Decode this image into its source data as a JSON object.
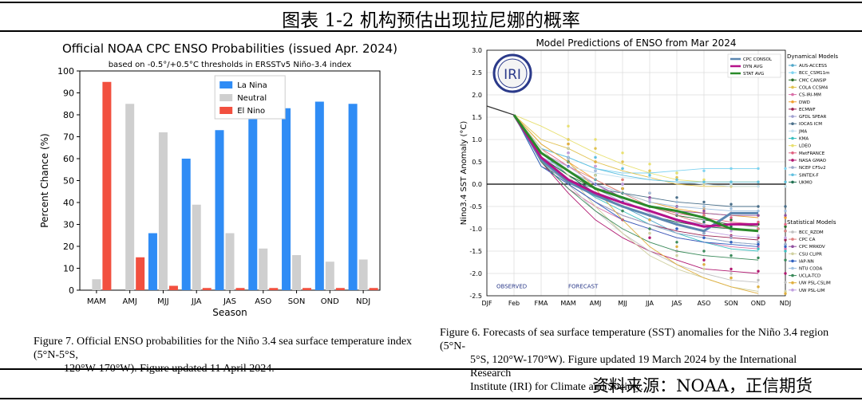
{
  "page": {
    "title": "图表 1-2 机构预估出现拉尼娜的概率",
    "source": "资料来源：NOAA，正信期货"
  },
  "left": {
    "caption_line1": "Figure 7. Official ENSO probabilities for the Niño 3.4 sea surface temperature index (5°N-5°S,",
    "caption_line2": "120°W-170°W). Figure updated 11 April 2024."
  },
  "right": {
    "caption_line1": "Figure 6. Forecasts of sea surface temperature (SST) anomalies for the Niño 3.4 region (5°N-",
    "caption_line2": "5°S, 120°W-170°W). Figure updated 19 March 2024 by the International Research",
    "caption_line3": "Institute (IRI) for Climate and Society.",
    "logo_text": "IRI"
  },
  "chart_data": [
    {
      "type": "bar",
      "title": "Official NOAA CPC ENSO Probabilities (issued Apr. 2024)",
      "subtitle": "based on -0.5°/+0.5°C thresholds in ERSSTv5 Niño-3.4 index",
      "xlabel": "Season",
      "ylabel": "Percent Chance (%)",
      "ylim": [
        0,
        100
      ],
      "yticks": [
        0,
        10,
        20,
        30,
        40,
        50,
        60,
        70,
        80,
        90,
        100
      ],
      "categories": [
        "MAM",
        "AMJ",
        "MJJ",
        "JJA",
        "JAS",
        "ASO",
        "SON",
        "OND",
        "NDJ"
      ],
      "legend_position": "top-center",
      "grid": false,
      "series": [
        {
          "name": "La Nina",
          "color": "#2f8cf5",
          "values": [
            0,
            0,
            26,
            60,
            73,
            80,
            83,
            86,
            85
          ]
        },
        {
          "name": "Neutral",
          "color": "#cfcfcf",
          "values": [
            5,
            85,
            72,
            39,
            26,
            19,
            16,
            13,
            14
          ]
        },
        {
          "name": "El Nino",
          "color": "#f2503f",
          "values": [
            95,
            15,
            2,
            1,
            1,
            1,
            1,
            1,
            1
          ]
        }
      ]
    },
    {
      "type": "line",
      "title": "Model Predictions of ENSO from Mar 2024",
      "ylabel": "Nino3.4 SST Anomaly (°C)",
      "ylim": [
        -2.5,
        3.0
      ],
      "yticks": [
        -2.5,
        -2.0,
        -1.5,
        -1.0,
        -0.5,
        0.0,
        0.5,
        1.0,
        1.5,
        2.0,
        2.5,
        3.0
      ],
      "x": [
        "DJF",
        "Feb",
        "FMA",
        "MAM",
        "AMJ",
        "MJJ",
        "JJA",
        "JAS",
        "ASO",
        "SON",
        "OND",
        "NDJ"
      ],
      "grid": true,
      "annotations": [
        "OBSERVED",
        "FORECAST"
      ],
      "observed": [
        1.75,
        1.55
      ],
      "averages": [
        {
          "name": "CPC CONSOL",
          "color": "#5b86b0",
          "values": [
            0.55,
            0.05,
            -0.25,
            -0.5,
            -0.7,
            -0.9,
            -1.05,
            -0.65,
            -0.65
          ]
        },
        {
          "name": "DYN AVG",
          "color": "#b5128a",
          "values": [
            0.6,
            0.1,
            -0.2,
            -0.42,
            -0.6,
            -0.8,
            -0.95,
            -0.9,
            -0.9
          ]
        },
        {
          "name": "STAT AVG",
          "color": "#2a8a2a",
          "values": [
            0.7,
            0.3,
            -0.1,
            -0.3,
            -0.5,
            -0.6,
            -0.75,
            -1.0,
            -1.05
          ]
        }
      ],
      "dynamical_legend_title": "Dynamical Models",
      "statistical_legend_title": "Statistical Models",
      "dynamical_models": [
        {
          "name": "AUS-ACCESS",
          "color": "#4da6c9",
          "values": [
            0.7,
            0.2,
            -0.2,
            -0.5,
            -0.8,
            -1.1,
            -1.2,
            -1.3,
            -1.35
          ]
        },
        {
          "name": "BCC_CSM11m",
          "color": "#7fd3f0",
          "values": [
            0.8,
            0.6,
            0.35,
            0.25,
            0.25,
            0.3,
            0.35,
            0.35,
            0.35
          ]
        },
        {
          "name": "CMC CANSIP",
          "color": "#2a6e2a",
          "values": [
            0.6,
            0.2,
            -0.1,
            -0.3,
            -0.5,
            -0.7,
            -0.8,
            -0.9,
            -0.95
          ]
        },
        {
          "name": "COLA CCSM4",
          "color": "#e0c250",
          "values": [
            1.0,
            0.8,
            0.5,
            0.3,
            0.15,
            0.0,
            -0.05,
            -0.05,
            -0.05
          ]
        },
        {
          "name": "CS-IRI-MM",
          "color": "#d970a8",
          "values": [
            0.5,
            -0.1,
            -0.5,
            -0.8,
            -1.0,
            -1.2,
            -1.3,
            -1.4,
            -1.45
          ]
        },
        {
          "name": "DWD",
          "color": "#f0a030",
          "values": [
            0.9,
            0.5,
            0.1,
            -0.2,
            -0.4,
            -0.55,
            -0.65,
            -0.7,
            -0.75
          ]
        },
        {
          "name": "ECMWF",
          "color": "#9a2050",
          "values": [
            0.6,
            0.0,
            -0.4,
            -0.7,
            -0.9,
            -1.05,
            -1.15,
            -1.2,
            -1.25
          ]
        },
        {
          "name": "GFDL SPEAR",
          "color": "#a0a0d0",
          "values": [
            0.7,
            0.3,
            -0.1,
            -0.4,
            -0.6,
            -0.8,
            -0.9,
            -1.0,
            -1.05
          ]
        },
        {
          "name": "IOCAS ICM",
          "color": "#4a6f8a",
          "values": [
            0.4,
            0.1,
            -0.1,
            -0.2,
            -0.3,
            -0.4,
            -0.45,
            -0.5,
            -0.5
          ]
        },
        {
          "name": "JMA",
          "color": "#c4e0f0",
          "values": [
            0.6,
            0.4,
            0.25,
            0.15,
            0.1,
            0.05,
            0.0,
            -0.05,
            -0.05
          ]
        },
        {
          "name": "KMA",
          "color": "#3cc0c0",
          "values": [
            0.5,
            0.1,
            -0.3,
            -0.6,
            -0.9,
            -1.1,
            -1.3,
            -1.45,
            -1.5
          ]
        },
        {
          "name": "LDEO",
          "color": "#e8e070",
          "values": [
            1.3,
            1.0,
            0.7,
            0.45,
            0.25,
            0.1,
            0.05,
            0.05,
            0.05
          ]
        },
        {
          "name": "MetFRANCE",
          "color": "#e06080",
          "values": [
            0.8,
            0.4,
            0.0,
            -0.3,
            -0.5,
            -0.65,
            -0.75,
            -0.85,
            -0.9
          ]
        },
        {
          "name": "NASA GMAO",
          "color": "#b01870",
          "values": [
            0.5,
            -0.2,
            -0.8,
            -1.2,
            -1.5,
            -1.7,
            -1.9,
            -1.95,
            -2.0
          ]
        },
        {
          "name": "NCEP CFSv2",
          "color": "#9aa7c8",
          "values": [
            0.5,
            0.0,
            -0.4,
            -0.7,
            -0.9,
            -1.1,
            -1.2,
            -1.3,
            -1.35
          ]
        },
        {
          "name": "SINTEX-F",
          "color": "#60c0e0",
          "values": [
            0.8,
            0.6,
            0.35,
            0.2,
            0.1,
            0.05,
            0.05,
            0.05,
            0.05
          ]
        },
        {
          "name": "UKMO",
          "color": "#207050",
          "values": [
            0.6,
            0.2,
            -0.2,
            -0.5,
            -0.7,
            -0.85,
            -0.95,
            -1.0,
            -1.05
          ]
        }
      ],
      "statistical_models": [
        {
          "name": "BCC_RZDM",
          "color": "#c0c0c0",
          "values": [
            0.55,
            0.0,
            -0.6,
            -1.1,
            -1.5,
            -1.8,
            -2.0,
            -2.15,
            -2.2
          ]
        },
        {
          "name": "CPC CA",
          "color": "#e08080",
          "values": [
            0.7,
            0.4,
            0.1,
            -0.2,
            -0.5,
            -0.7,
            -0.9,
            -1.0,
            -1.05
          ]
        },
        {
          "name": "CPC MRKOV",
          "color": "#9050a0",
          "values": [
            0.6,
            0.3,
            0.0,
            -0.3,
            -0.5,
            -0.6,
            -0.65,
            -0.7,
            -0.7
          ]
        },
        {
          "name": "CSU CLIPR",
          "color": "#d0d0a0",
          "values": [
            0.8,
            0.2,
            -0.5,
            -1.1,
            -1.6,
            -1.9,
            -2.1,
            -2.3,
            -2.4
          ]
        },
        {
          "name": "IAP-NN",
          "color": "#3060c0",
          "values": [
            0.4,
            0.0,
            -0.4,
            -0.8,
            -1.0,
            -1.2,
            -1.3,
            -1.35,
            -1.4
          ]
        },
        {
          "name": "NTU CODA",
          "color": "#a0c0e0",
          "values": [
            0.6,
            0.3,
            0.0,
            -0.2,
            -0.4,
            -0.5,
            -0.55,
            -0.6,
            -0.6
          ]
        },
        {
          "name": "UCLA-TCD",
          "color": "#3a8a5a",
          "values": [
            0.5,
            -0.1,
            -0.6,
            -1.0,
            -1.3,
            -1.5,
            -1.6,
            -1.65,
            -1.7
          ]
        },
        {
          "name": "UW PSL-CSLIM",
          "color": "#e0b040",
          "values": [
            0.9,
            0.5,
            -0.1,
            -0.8,
            -1.4,
            -1.8,
            -2.1,
            -2.3,
            -2.45
          ]
        },
        {
          "name": "UW PSL-LIM",
          "color": "#c0a0e0",
          "values": [
            0.7,
            0.4,
            0.0,
            -0.35,
            -0.65,
            -0.9,
            -1.05,
            -1.15,
            -1.2
          ]
        }
      ]
    }
  ]
}
